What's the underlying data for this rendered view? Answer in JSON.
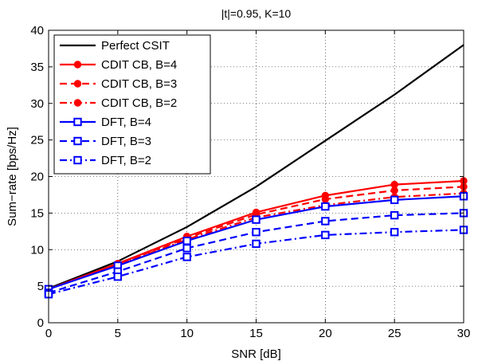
{
  "chart_data": {
    "type": "line",
    "title": "|t|=0.95, K=10",
    "xlabel": "SNR [dB]",
    "ylabel": "Sum−rate [bps/Hz]",
    "x": [
      0,
      5,
      10,
      15,
      20,
      25,
      30
    ],
    "xlim": [
      0,
      30
    ],
    "ylim": [
      0,
      40
    ],
    "xticks": [
      "0",
      "5",
      "10",
      "15",
      "20",
      "25",
      "30"
    ],
    "yticks": [
      "0",
      "5",
      "10",
      "15",
      "20",
      "25",
      "30",
      "35",
      "40"
    ],
    "grid": true,
    "legend_position": "top-left",
    "series": [
      {
        "name": "Perfect CSIT",
        "color": "#000000",
        "dash": "solid",
        "marker": "none",
        "values": [
          4.7,
          8.4,
          13.1,
          18.6,
          24.9,
          31.2,
          38.0
        ]
      },
      {
        "name": "CDIT CB, B=4",
        "color": "#ff0000",
        "dash": "solid",
        "marker": "dot",
        "values": [
          4.6,
          8.1,
          11.8,
          15.1,
          17.4,
          18.9,
          19.4
        ]
      },
      {
        "name": "CDIT CB, B=3",
        "color": "#ff0000",
        "dash": "dashed",
        "marker": "dot",
        "values": [
          4.6,
          8.0,
          11.6,
          14.8,
          16.9,
          18.1,
          18.6
        ]
      },
      {
        "name": "CDIT CB, B=2",
        "color": "#ff0000",
        "dash": "dashdot",
        "marker": "dot",
        "values": [
          4.6,
          7.9,
          11.4,
          14.4,
          16.1,
          17.2,
          17.7
        ]
      },
      {
        "name": "DFT, B=4",
        "color": "#0000ff",
        "dash": "solid",
        "marker": "square",
        "values": [
          4.6,
          7.8,
          11.2,
          14.1,
          15.9,
          16.8,
          17.3
        ]
      },
      {
        "name": "DFT, B=3",
        "color": "#0000ff",
        "dash": "dashed",
        "marker": "square",
        "values": [
          4.1,
          7.0,
          10.2,
          12.4,
          13.9,
          14.7,
          15.0
        ]
      },
      {
        "name": "DFT, B=2",
        "color": "#0000ff",
        "dash": "dashdot",
        "marker": "square",
        "values": [
          3.9,
          6.3,
          9.0,
          10.8,
          12.0,
          12.4,
          12.7
        ]
      }
    ]
  }
}
